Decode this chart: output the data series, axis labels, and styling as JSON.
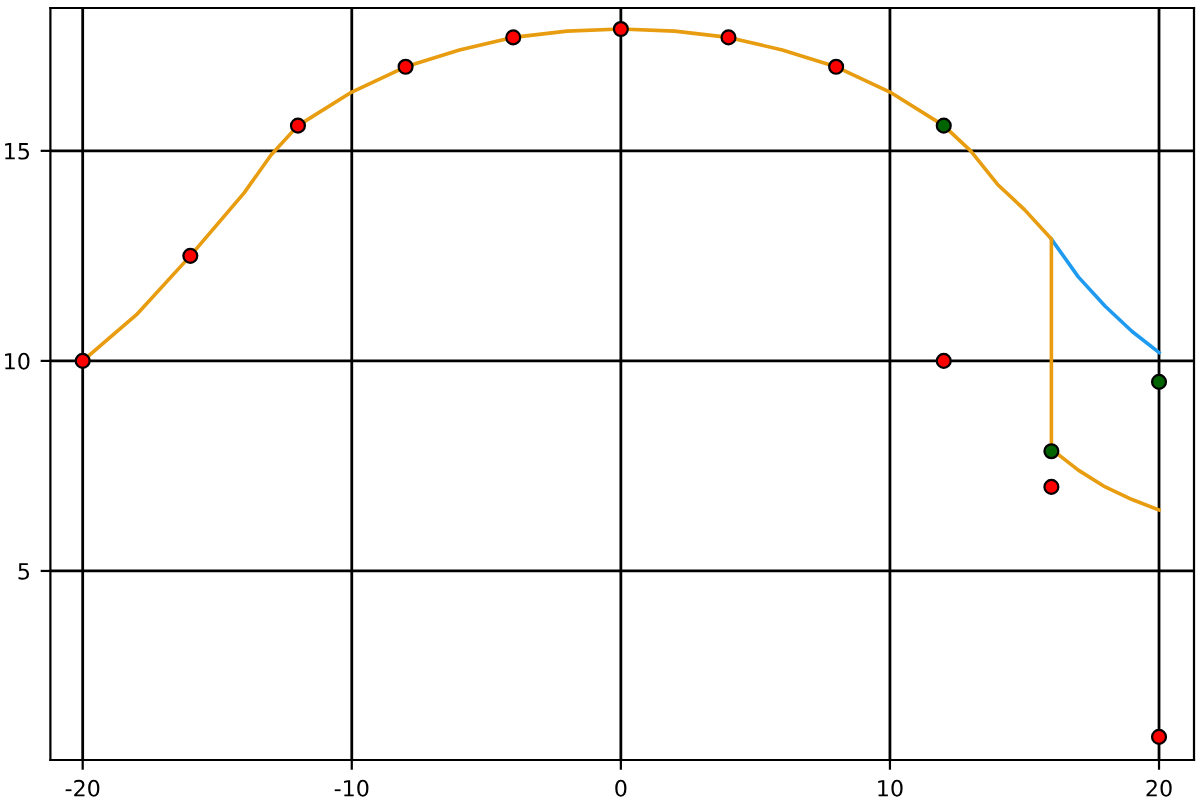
{
  "chart_data": {
    "type": "line",
    "xlim": [
      -21.2,
      21.3
    ],
    "ylim": [
      0.5,
      18.4
    ],
    "xticks": [
      -20,
      -10,
      0,
      10,
      20
    ],
    "yticks": [
      5,
      10,
      15
    ],
    "grid": true,
    "series": [
      {
        "color": "#1e9bf0",
        "x": [
          16,
          17,
          18,
          19,
          20
        ],
        "values": [
          12.9,
          12.0,
          11.3,
          10.7,
          10.2
        ]
      },
      {
        "color": "#e89c10",
        "x": [
          -20,
          -18,
          -16,
          -14,
          -13,
          -12,
          -10,
          -8,
          -6,
          -4,
          -2,
          0,
          2,
          4,
          6,
          8,
          10,
          12,
          13,
          14,
          15,
          16,
          16,
          17,
          18,
          19,
          20
        ],
        "values": [
          10,
          11.1,
          12.5,
          14.0,
          14.9,
          15.6,
          16.4,
          17.0,
          17.4,
          17.7,
          17.85,
          17.9,
          17.85,
          17.7,
          17.4,
          17.0,
          16.4,
          15.6,
          15.0,
          14.2,
          13.6,
          12.9,
          7.9,
          7.4,
          7.0,
          6.7,
          6.45
        ]
      },
      {
        "type": "scatter",
        "color": "#ff0000",
        "marker": "circle",
        "x": [
          -20,
          -16,
          -12,
          -8,
          -4,
          0,
          4,
          8,
          12,
          16,
          20
        ],
        "values": [
          10,
          12.5,
          15.6,
          17.0,
          17.7,
          17.9,
          17.7,
          17.0,
          10.0,
          7.0,
          1.05
        ]
      },
      {
        "type": "scatter",
        "color": "#006400",
        "marker": "circle",
        "x": [
          12,
          16,
          20
        ],
        "values": [
          15.6,
          7.85,
          9.5
        ]
      }
    ]
  }
}
